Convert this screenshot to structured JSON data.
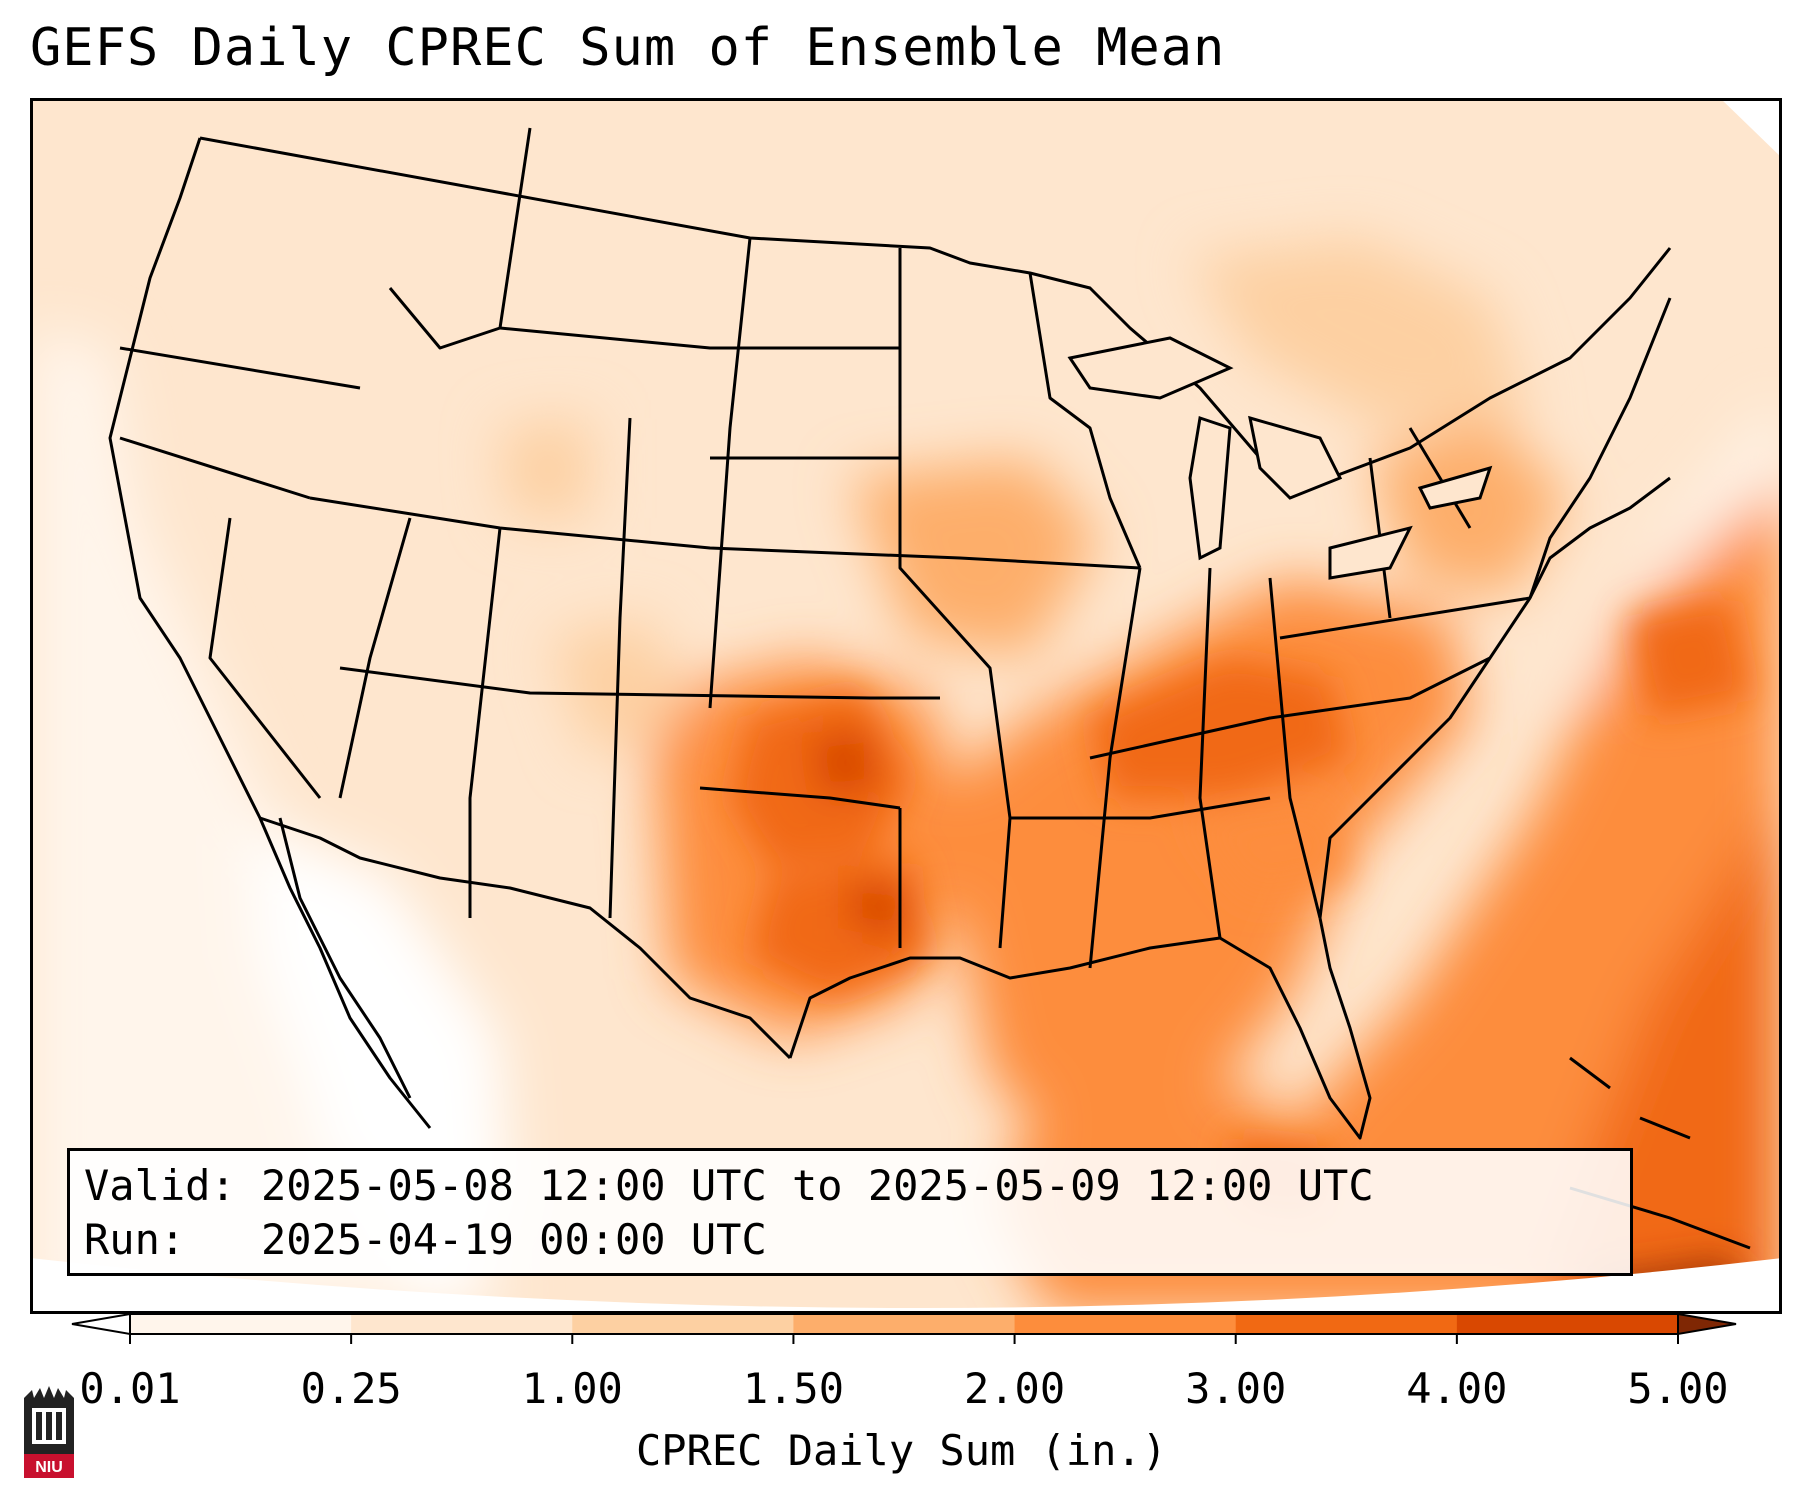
{
  "title": "GEFS Daily CPREC Sum of Ensemble Mean",
  "info": {
    "valid_label": "Valid:",
    "valid_value": "2025-05-08 12:00 UTC to 2025-05-09 12:00 UTC",
    "run_label": "Run:",
    "run_value": "2025-04-19 00:00 UTC"
  },
  "colorbar": {
    "label": "CPREC Daily Sum (in.)",
    "ticks": [
      "0.01",
      "0.25",
      "1.00",
      "1.50",
      "2.00",
      "3.00",
      "4.00",
      "5.00"
    ],
    "colors": [
      "#fff5eb",
      "#fee6ce",
      "#fdd0a2",
      "#fdae6b",
      "#fd8d3c",
      "#f16913",
      "#d94801",
      "#a63603"
    ],
    "under_color": "#ffffff",
    "over_color": "#7f2704"
  },
  "logo": {
    "text": "NIU",
    "color": "#c8102e",
    "icon": "university-tower-icon"
  },
  "colors": {
    "border": "#000000",
    "ocean_light": "#fff5eb"
  }
}
